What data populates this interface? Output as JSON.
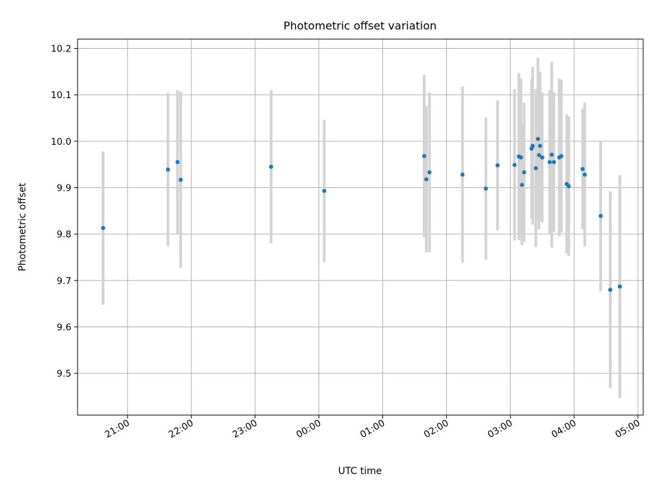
{
  "chart_data": {
    "type": "scatter",
    "title": "Photometric offset variation",
    "xlabel": "UTC time",
    "ylabel": "Photometric offset",
    "x_tick_labels": [
      "21:00",
      "22:00",
      "23:00",
      "00:00",
      "01:00",
      "02:00",
      "03:00",
      "04:00",
      "05:00"
    ],
    "y_tick_labels": [
      "9.5",
      "9.6",
      "9.7",
      "9.8",
      "9.9",
      "10.0",
      "10.1",
      "10.2"
    ],
    "xlim": [
      "20:13",
      "05:05"
    ],
    "ylim": [
      9.41,
      10.22
    ],
    "grid": true,
    "marker_color": "#1f77b4",
    "errorbar_color": "#d3d3d3",
    "points": [
      {
        "t": "20:37",
        "y": 9.813,
        "err": 0.165
      },
      {
        "t": "21:38",
        "y": 9.939,
        "err": 0.165
      },
      {
        "t": "21:47",
        "y": 9.955,
        "err": 0.155
      },
      {
        "t": "21:50",
        "y": 9.917,
        "err": 0.19
      },
      {
        "t": "23:15",
        "y": 9.945,
        "err": 0.165
      },
      {
        "t": "00:05",
        "y": 9.893,
        "err": 0.153
      },
      {
        "t": "01:39",
        "y": 9.968,
        "err": 0.175
      },
      {
        "t": "01:41",
        "y": 9.918,
        "err": 0.158
      },
      {
        "t": "01:44",
        "y": 9.933,
        "err": 0.172
      },
      {
        "t": "02:15",
        "y": 9.928,
        "err": 0.19
      },
      {
        "t": "02:37",
        "y": 9.898,
        "err": 0.153
      },
      {
        "t": "02:48",
        "y": 9.948,
        "err": 0.14
      },
      {
        "t": "03:04",
        "y": 9.949,
        "err": 0.163
      },
      {
        "t": "03:08",
        "y": 9.967,
        "err": 0.18
      },
      {
        "t": "03:10",
        "y": 9.965,
        "err": 0.17
      },
      {
        "t": "03:11",
        "y": 9.906,
        "err": 0.13
      },
      {
        "t": "03:13",
        "y": 9.933,
        "err": 0.15
      },
      {
        "t": "03:20",
        "y": 9.984,
        "err": 0.15
      },
      {
        "t": "03:21",
        "y": 9.99,
        "err": 0.17
      },
      {
        "t": "03:24",
        "y": 9.942,
        "err": 0.17
      },
      {
        "t": "03:26",
        "y": 10.005,
        "err": 0.175
      },
      {
        "t": "03:27",
        "y": 9.97,
        "err": 0.16
      },
      {
        "t": "03:28",
        "y": 9.99,
        "err": 0.16
      },
      {
        "t": "03:30",
        "y": 9.965,
        "err": 0.14
      },
      {
        "t": "03:37",
        "y": 9.955,
        "err": 0.155
      },
      {
        "t": "03:39",
        "y": 9.971,
        "err": 0.2
      },
      {
        "t": "03:41",
        "y": 9.955,
        "err": 0.15
      },
      {
        "t": "03:46",
        "y": 9.965,
        "err": 0.17
      },
      {
        "t": "03:48",
        "y": 9.968,
        "err": 0.165
      },
      {
        "t": "03:53",
        "y": 9.908,
        "err": 0.15
      },
      {
        "t": "03:55",
        "y": 9.903,
        "err": 0.15
      },
      {
        "t": "04:08",
        "y": 9.94,
        "err": 0.13
      },
      {
        "t": "04:10",
        "y": 9.928,
        "err": 0.155
      },
      {
        "t": "04:25",
        "y": 9.839,
        "err": 0.162
      },
      {
        "t": "04:34",
        "y": 9.68,
        "err": 0.212
      },
      {
        "t": "04:43",
        "y": 9.687,
        "err": 0.24
      }
    ]
  }
}
